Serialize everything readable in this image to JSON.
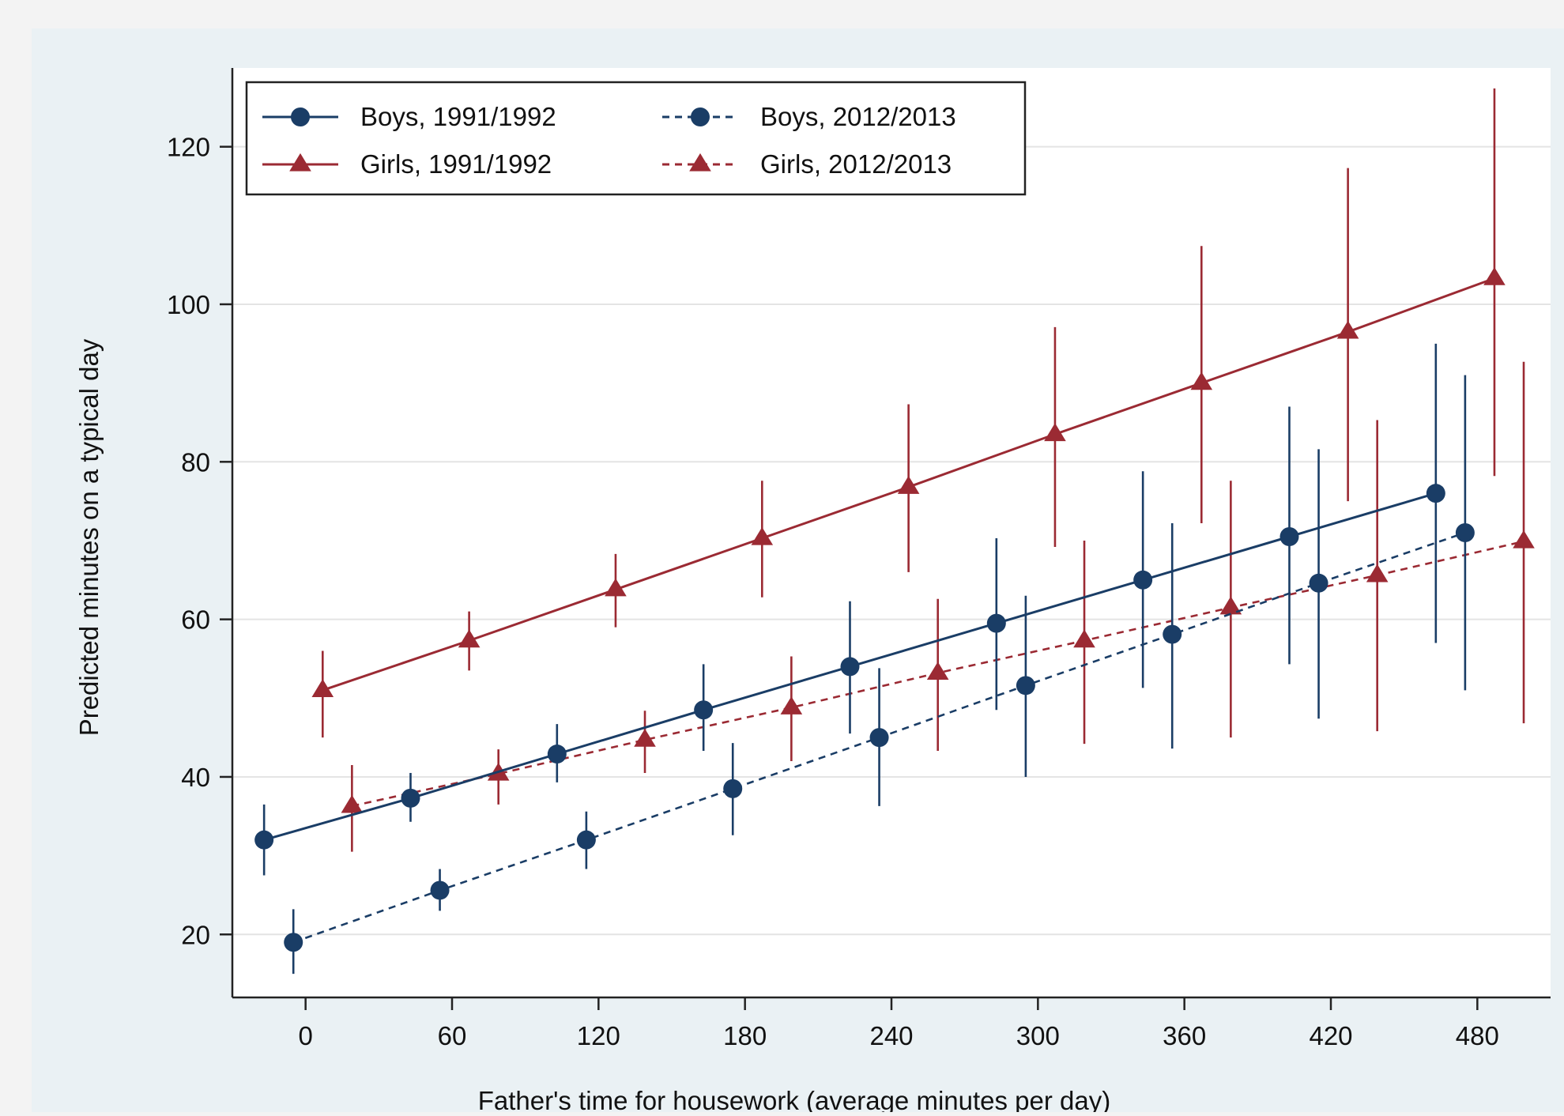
{
  "chart_data": {
    "type": "line",
    "title": "",
    "xlabel": "Father's time for housework (average minutes per day)",
    "ylabel": "Predicted minutes on a typical day",
    "xlim": [
      -30,
      510
    ],
    "ylim": [
      12,
      130
    ],
    "xticks": [
      0,
      60,
      120,
      180,
      240,
      300,
      360,
      420,
      480
    ],
    "yticks": [
      20,
      40,
      60,
      80,
      100,
      120
    ],
    "grid": true,
    "legend_position": "top-left",
    "colors": {
      "boys": "#1a3d66",
      "girls": "#9b2a33",
      "plot_background": "#ffffff",
      "figure_background": "#eaf1f4"
    },
    "series": [
      {
        "name": "Boys, 1991/1992",
        "group": "boys",
        "line": "solid",
        "marker": "circle",
        "x": [
          -17,
          43,
          103,
          163,
          223,
          283,
          343,
          403,
          463
        ],
        "y": [
          32,
          37.3,
          42.9,
          48.5,
          54,
          59.5,
          65,
          70.5,
          76
        ],
        "lower": [
          27.5,
          34.3,
          39.3,
          43.3,
          45.5,
          48.5,
          51.3,
          54.3,
          57
        ],
        "upper": [
          36.5,
          40.5,
          46.7,
          54.3,
          62.3,
          70.3,
          78.8,
          87,
          95
        ]
      },
      {
        "name": "Girls, 1991/1992",
        "group": "girls",
        "line": "solid",
        "marker": "triangle",
        "x": [
          7,
          67,
          127,
          187,
          247,
          307,
          367,
          427,
          487
        ],
        "y": [
          51,
          57.3,
          63.8,
          70.3,
          76.8,
          83.5,
          90,
          96.5,
          103.3
        ],
        "lower": [
          45,
          53.5,
          59,
          62.8,
          66,
          69.2,
          72.2,
          75,
          78.2
        ],
        "upper": [
          56,
          61,
          68.3,
          77.6,
          87.3,
          97.1,
          107.4,
          117.3,
          127.4
        ]
      },
      {
        "name": "Boys, 2012/2013",
        "group": "boys",
        "line": "dashed",
        "marker": "circle",
        "x": [
          -5,
          55,
          115,
          175,
          235,
          295,
          355,
          415,
          475
        ],
        "y": [
          19,
          25.6,
          32,
          38.5,
          45,
          51.6,
          58.1,
          64.6,
          71
        ],
        "lower": [
          15,
          23,
          28.3,
          32.6,
          36.3,
          40,
          43.6,
          47.4,
          51
        ],
        "upper": [
          23.2,
          28.3,
          35.6,
          44.3,
          53.8,
          63,
          72.2,
          81.6,
          91
        ]
      },
      {
        "name": "Girls, 2012/2013",
        "group": "girls",
        "line": "dashed",
        "marker": "triangle",
        "x": [
          19,
          79,
          139,
          199,
          259,
          319,
          379,
          439,
          499
        ],
        "y": [
          36.3,
          40.4,
          44.7,
          48.8,
          53.2,
          57.3,
          61.5,
          65.6,
          69.9
        ],
        "lower": [
          30.5,
          36.5,
          40.5,
          42,
          43.3,
          44.2,
          45,
          45.8,
          46.8
        ],
        "upper": [
          41.5,
          43.5,
          48.4,
          55.3,
          62.6,
          70,
          77.6,
          85.3,
          92.7
        ]
      }
    ]
  }
}
